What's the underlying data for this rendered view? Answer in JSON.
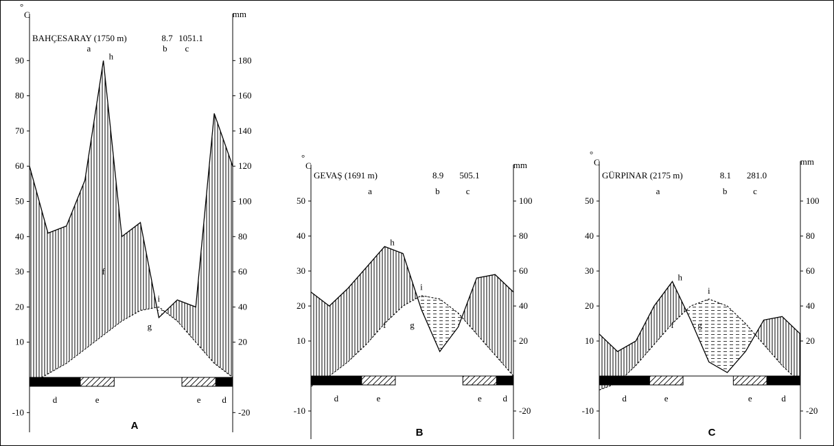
{
  "chart_data": [
    {
      "type": "climate-diagram",
      "panel_label": "A",
      "station": "BAHÇESARAY (1750 m)",
      "mean_temp": "8.7",
      "annual_precip": "1051.1",
      "header_letters": {
        "station": "a",
        "temp": "b",
        "precip": "c"
      },
      "units": {
        "temp": "°C",
        "precip": "mm"
      },
      "temp_axis": {
        "ticks": [
          -10,
          10,
          20,
          30,
          40,
          50,
          60,
          70,
          80,
          90
        ],
        "range": [
          -15,
          100
        ]
      },
      "precip_axis": {
        "ticks": [
          -20,
          20,
          40,
          60,
          80,
          100,
          120,
          140,
          160,
          180
        ]
      },
      "temp_curve": [
        -2,
        1,
        4,
        8,
        12,
        16,
        19,
        20,
        16,
        10,
        4,
        0
      ],
      "precip_curve": [
        120,
        82,
        86,
        112,
        180,
        80,
        88,
        34,
        44,
        40,
        150,
        120
      ],
      "letters": {
        "h": "h",
        "f": "f",
        "g": "g",
        "i": "i",
        "d": "d",
        "e": "e"
      },
      "frost_bar": [
        {
          "kind": "solid",
          "from": 0,
          "to": 3
        },
        {
          "kind": "hatch",
          "from": 3,
          "to": 5
        },
        {
          "kind": "none",
          "from": 5,
          "to": 9
        },
        {
          "kind": "hatch",
          "from": 9,
          "to": 11
        },
        {
          "kind": "solid",
          "from": 11,
          "to": 12
        }
      ],
      "bar_letters": [
        {
          "t": "d",
          "m": 1.5
        },
        {
          "t": "e",
          "m": 4
        },
        {
          "t": "e",
          "m": 10
        },
        {
          "t": "d",
          "m": 11.5
        }
      ]
    },
    {
      "type": "climate-diagram",
      "panel_label": "B",
      "station": "GEVAŞ (1691 m)",
      "mean_temp": "8.9",
      "annual_precip": "505.1",
      "header_letters": {
        "station": "a",
        "temp": "b",
        "precip": "c"
      },
      "units": {
        "temp": "°C",
        "precip": "mm"
      },
      "temp_axis": {
        "ticks": [
          -10,
          10,
          20,
          30,
          40,
          50
        ],
        "range": [
          -15,
          60
        ]
      },
      "precip_axis": {
        "ticks": [
          -20,
          20,
          40,
          60,
          80,
          100
        ]
      },
      "temp_curve": [
        -3,
        0,
        4,
        9,
        15,
        20,
        23,
        22,
        18,
        12,
        6,
        0
      ],
      "precip_curve": [
        48,
        40,
        50,
        62,
        74,
        70,
        38,
        14,
        28,
        56,
        58,
        48
      ],
      "letters": {
        "h": "h",
        "f": "f",
        "g": "g",
        "i": "i",
        "d": "d",
        "e": "e"
      },
      "frost_bar": [
        {
          "kind": "solid",
          "from": 0,
          "to": 3
        },
        {
          "kind": "hatch",
          "from": 3,
          "to": 5
        },
        {
          "kind": "none",
          "from": 5,
          "to": 9
        },
        {
          "kind": "hatch",
          "from": 9,
          "to": 11
        },
        {
          "kind": "solid",
          "from": 11,
          "to": 12
        }
      ],
      "bar_letters": [
        {
          "t": "d",
          "m": 1.5
        },
        {
          "t": "e",
          "m": 4
        },
        {
          "t": "e",
          "m": 10
        },
        {
          "t": "d",
          "m": 11.5
        }
      ]
    },
    {
      "type": "climate-diagram",
      "panel_label": "C",
      "station": "GÜRPINAR (2175 m)",
      "mean_temp": "8.1",
      "annual_precip": "281.0",
      "header_letters": {
        "station": "a",
        "temp": "b",
        "precip": "c"
      },
      "units": {
        "temp": "°C",
        "precip": "mm"
      },
      "temp_axis": {
        "ticks": [
          -10,
          10,
          20,
          30,
          40,
          50
        ],
        "range": [
          -15,
          60
        ]
      },
      "precip_axis": {
        "ticks": [
          -20,
          20,
          40,
          60,
          80,
          100
        ]
      },
      "temp_curve": [
        -4,
        -2,
        3,
        9,
        15,
        20,
        22,
        20,
        15,
        9,
        3,
        -2
      ],
      "precip_curve": [
        24,
        14,
        20,
        40,
        54,
        32,
        8,
        2,
        14,
        32,
        34,
        24
      ],
      "letters": {
        "h": "h",
        "f": "f",
        "g": "g",
        "i": "i",
        "d": "d",
        "e": "e"
      },
      "frost_bar": [
        {
          "kind": "solid",
          "from": 0,
          "to": 3
        },
        {
          "kind": "hatch",
          "from": 3,
          "to": 5
        },
        {
          "kind": "none",
          "from": 5,
          "to": 8
        },
        {
          "kind": "hatch",
          "from": 8,
          "to": 10
        },
        {
          "kind": "solid",
          "from": 10,
          "to": 12
        }
      ],
      "bar_letters": [
        {
          "t": "d",
          "m": 1.5
        },
        {
          "t": "e",
          "m": 4
        },
        {
          "t": "e",
          "m": 9
        },
        {
          "t": "d",
          "m": 11
        }
      ]
    }
  ]
}
